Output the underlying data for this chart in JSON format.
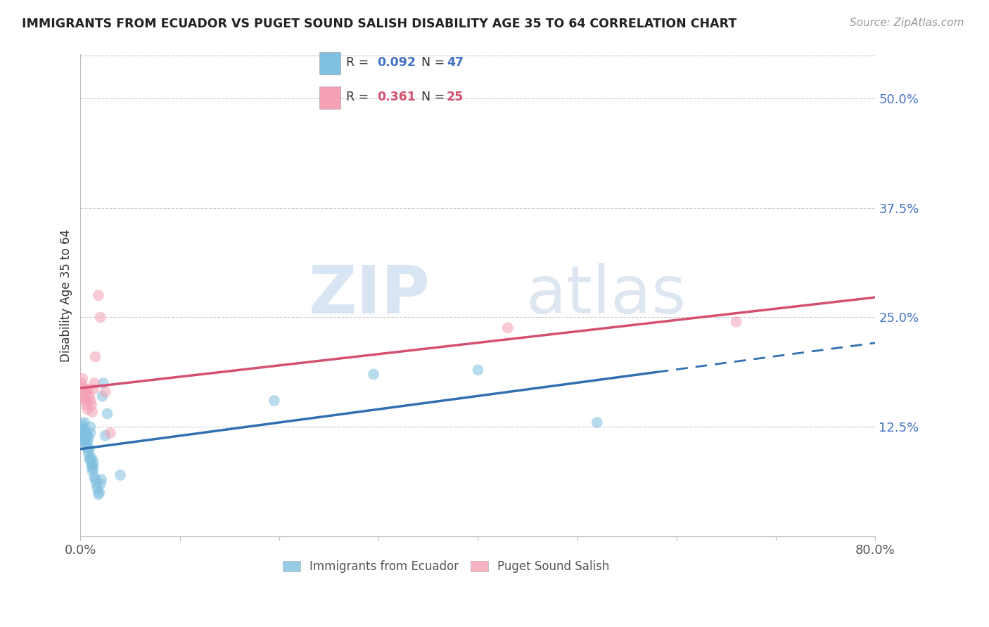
{
  "title": "IMMIGRANTS FROM ECUADOR VS PUGET SOUND SALISH DISABILITY AGE 35 TO 64 CORRELATION CHART",
  "source": "Source: ZipAtlas.com",
  "ylabel": "Disability Age 35 to 64",
  "xlim": [
    0.0,
    0.8
  ],
  "ylim": [
    0.0,
    0.55
  ],
  "yticks_right": [
    0.125,
    0.25,
    0.375,
    0.5
  ],
  "ytick_labels_right": [
    "12.5%",
    "25.0%",
    "37.5%",
    "50.0%"
  ],
  "grid_color": "#cccccc",
  "background_color": "#ffffff",
  "blue_color": "#7fbfdf",
  "pink_color": "#f4a0b5",
  "blue_line_color": "#3070b0",
  "pink_line_color": "#d45070",
  "legend_R_blue": "0.092",
  "legend_N_blue": "47",
  "legend_R_pink": "0.361",
  "legend_N_pink": "25",
  "blue_scatter_x": [
    0.001,
    0.001,
    0.002,
    0.002,
    0.003,
    0.003,
    0.004,
    0.004,
    0.004,
    0.005,
    0.005,
    0.005,
    0.006,
    0.006,
    0.007,
    0.007,
    0.007,
    0.008,
    0.008,
    0.009,
    0.009,
    0.01,
    0.01,
    0.01,
    0.011,
    0.011,
    0.012,
    0.012,
    0.013,
    0.013,
    0.014,
    0.015,
    0.016,
    0.017,
    0.018,
    0.019,
    0.02,
    0.021,
    0.022,
    0.023,
    0.025,
    0.027,
    0.04,
    0.195,
    0.295,
    0.4,
    0.52
  ],
  "blue_scatter_y": [
    0.125,
    0.118,
    0.128,
    0.115,
    0.122,
    0.11,
    0.118,
    0.108,
    0.13,
    0.115,
    0.12,
    0.105,
    0.112,
    0.118,
    0.108,
    0.115,
    0.1,
    0.112,
    0.095,
    0.1,
    0.088,
    0.118,
    0.125,
    0.088,
    0.09,
    0.08,
    0.082,
    0.075,
    0.085,
    0.078,
    0.068,
    0.065,
    0.06,
    0.055,
    0.048,
    0.05,
    0.06,
    0.065,
    0.16,
    0.175,
    0.115,
    0.14,
    0.07,
    0.155,
    0.185,
    0.19,
    0.13
  ],
  "pink_scatter_x": [
    0.001,
    0.002,
    0.003,
    0.003,
    0.004,
    0.004,
    0.005,
    0.005,
    0.006,
    0.006,
    0.007,
    0.008,
    0.009,
    0.01,
    0.011,
    0.012,
    0.013,
    0.014,
    0.015,
    0.018,
    0.02,
    0.025,
    0.03,
    0.43,
    0.66
  ],
  "pink_scatter_y": [
    0.175,
    0.18,
    0.17,
    0.16,
    0.165,
    0.158,
    0.155,
    0.168,
    0.162,
    0.15,
    0.145,
    0.168,
    0.16,
    0.155,
    0.15,
    0.142,
    0.168,
    0.175,
    0.205,
    0.275,
    0.25,
    0.165,
    0.118,
    0.238,
    0.245
  ],
  "watermark_zip": "ZIP",
  "watermark_atlas": "atlas"
}
